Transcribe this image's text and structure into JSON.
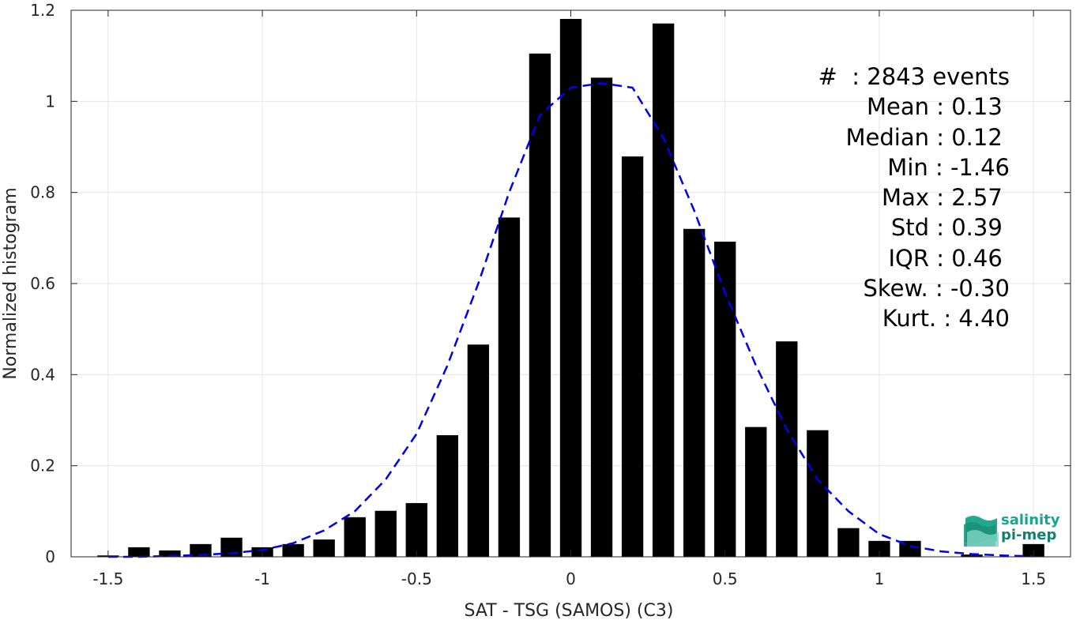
{
  "chart_data": {
    "type": "bar",
    "xlabel": "SAT - TSG (SAMOS) (C3)",
    "ylabel": "Normalized histogram",
    "xlim": [
      -1.62,
      1.62
    ],
    "ylim": [
      0,
      1.2
    ],
    "grid": true,
    "xticks": [
      -1.5,
      -1,
      -0.5,
      0,
      0.5,
      1,
      1.5
    ],
    "xtick_labels": [
      "-1.5",
      "-1",
      "-0.5",
      "0",
      "0.5",
      "1",
      "1.5"
    ],
    "yticks": [
      0,
      0.2,
      0.4,
      0.6,
      0.8,
      1,
      1.2
    ],
    "ytick_labels": [
      "0",
      "0.2",
      "0.4",
      "0.6",
      "0.8",
      "1",
      "1.2"
    ],
    "bar_width": 0.07,
    "bar_color": "#000000",
    "bars": [
      {
        "x": -1.5,
        "y": 0.003
      },
      {
        "x": -1.4,
        "y": 0.021
      },
      {
        "x": -1.3,
        "y": 0.014
      },
      {
        "x": -1.2,
        "y": 0.028
      },
      {
        "x": -1.1,
        "y": 0.042
      },
      {
        "x": -1.0,
        "y": 0.021
      },
      {
        "x": -0.9,
        "y": 0.028
      },
      {
        "x": -0.8,
        "y": 0.038
      },
      {
        "x": -0.7,
        "y": 0.087
      },
      {
        "x": -0.6,
        "y": 0.101
      },
      {
        "x": -0.5,
        "y": 0.118
      },
      {
        "x": -0.4,
        "y": 0.267
      },
      {
        "x": -0.3,
        "y": 0.466
      },
      {
        "x": -0.2,
        "y": 0.745
      },
      {
        "x": -0.1,
        "y": 1.105
      },
      {
        "x": 0.0,
        "y": 1.181
      },
      {
        "x": 0.1,
        "y": 1.052
      },
      {
        "x": 0.2,
        "y": 0.879
      },
      {
        "x": 0.3,
        "y": 1.171
      },
      {
        "x": 0.4,
        "y": 0.72
      },
      {
        "x": 0.5,
        "y": 0.692
      },
      {
        "x": 0.6,
        "y": 0.0
      },
      {
        "x": 0.7,
        "y": 0.473
      },
      {
        "x": 0.6,
        "y": 0.285
      },
      {
        "x": 0.8,
        "y": 0.278
      },
      {
        "x": 0.9,
        "y": 0.063
      },
      {
        "x": 1.0,
        "y": 0.035
      },
      {
        "x": 1.1,
        "y": 0.035
      },
      {
        "x": 1.3,
        "y": 0.005
      },
      {
        "x": 1.5,
        "y": 0.028
      }
    ],
    "fit_curve": {
      "style": "dashed",
      "color": "#0000ee",
      "x": [
        -1.5,
        -1.4,
        -1.3,
        -1.2,
        -1.1,
        -1.0,
        -0.9,
        -0.8,
        -0.7,
        -0.6,
        -0.5,
        -0.4,
        -0.3,
        -0.2,
        -0.1,
        0.0,
        0.1,
        0.2,
        0.3,
        0.4,
        0.5,
        0.6,
        0.7,
        0.8,
        0.9,
        1.0,
        1.1,
        1.2,
        1.3,
        1.4,
        1.5
      ],
      "y": [
        0.0,
        0.0,
        0.002,
        0.004,
        0.008,
        0.015,
        0.03,
        0.058,
        0.1,
        0.17,
        0.27,
        0.42,
        0.6,
        0.8,
        0.97,
        1.03,
        1.04,
        1.03,
        0.92,
        0.76,
        0.58,
        0.42,
        0.28,
        0.17,
        0.1,
        0.05,
        0.024,
        0.012,
        0.006,
        0.003,
        0.001
      ]
    }
  },
  "stats": [
    "#  : 2843 events",
    "Mean : 0.13 ",
    "Median : 0.12 ",
    "Min : -1.46",
    "Max : 2.57 ",
    "Std : 0.39 ",
    "IQR : 0.46 ",
    "Skew. : -0.30",
    "Kurt. : 4.40"
  ],
  "logo": {
    "line1": "salinity",
    "line2": "pi-mep",
    "color": "#1aa390"
  }
}
